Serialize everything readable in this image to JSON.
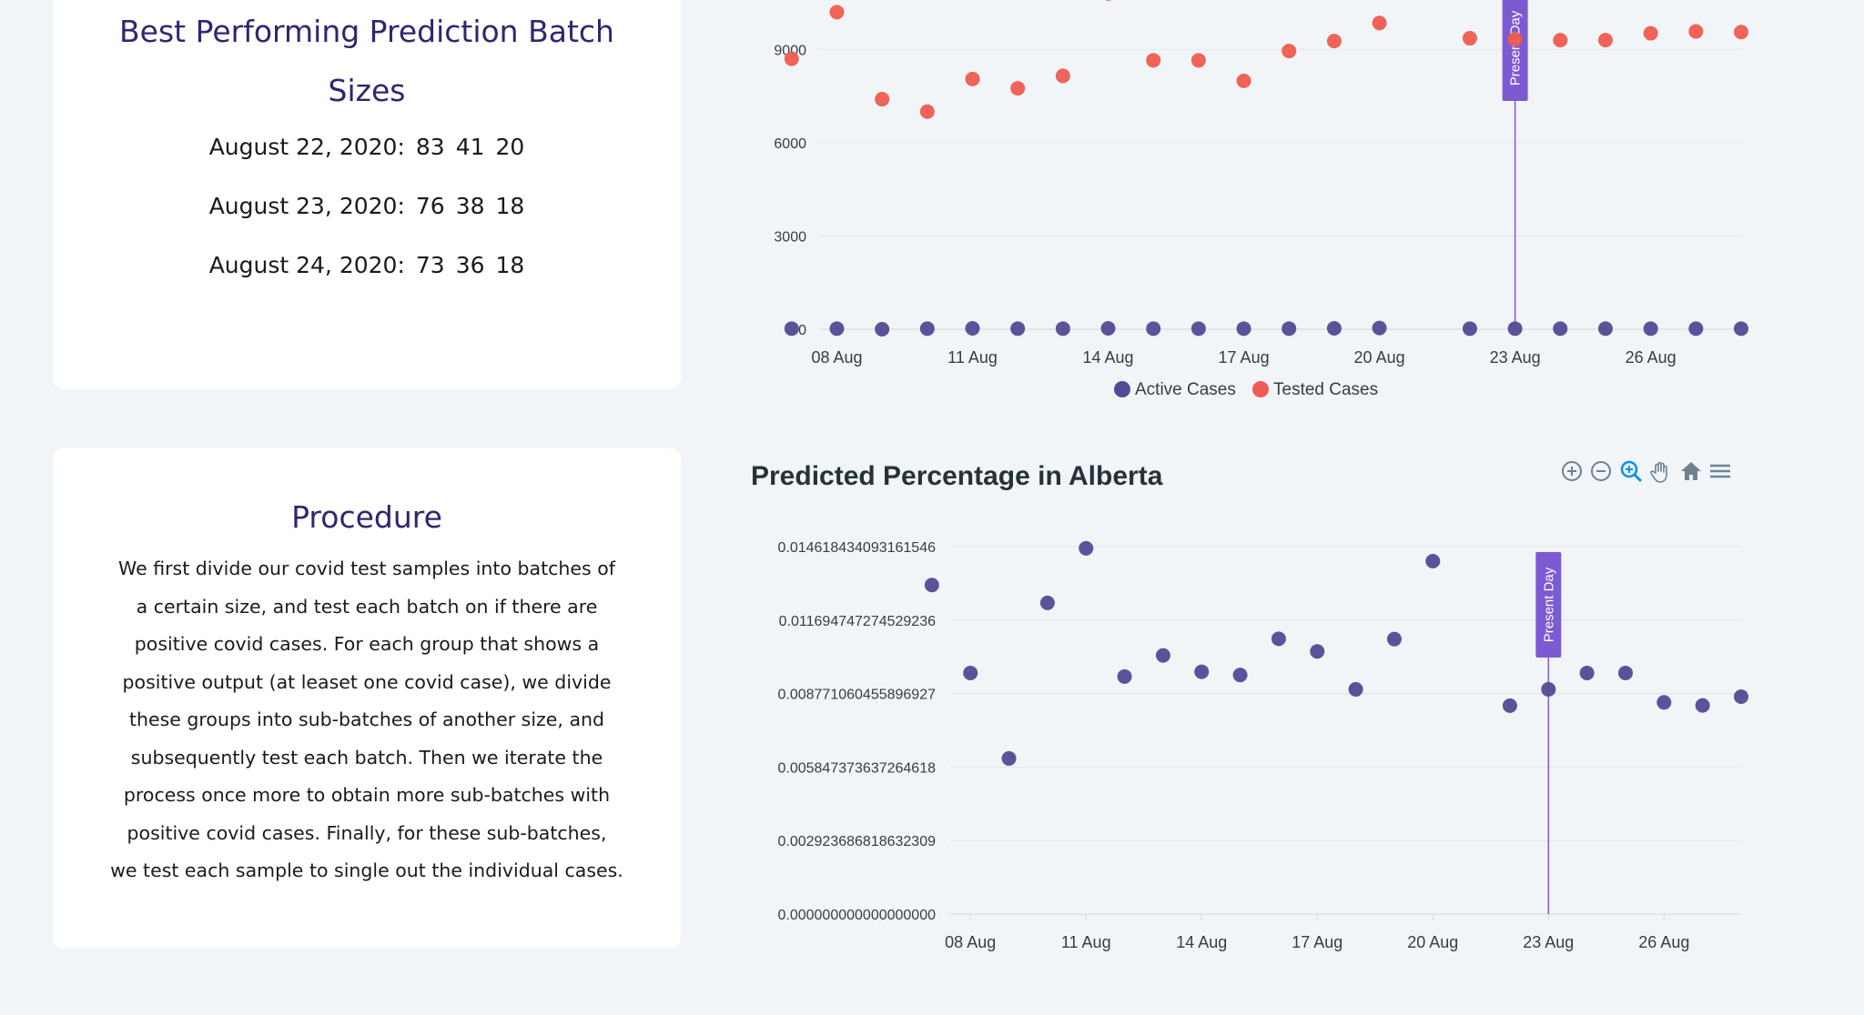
{
  "batch_card": {
    "title_line1": "Best Performing Prediction Batch",
    "title_line2": "Sizes",
    "rows": [
      {
        "date": "August 22, 2020:",
        "a": "83",
        "b": "41",
        "c": "20"
      },
      {
        "date": "August 23, 2020:",
        "a": "76",
        "b": "38",
        "c": "18"
      },
      {
        "date": "August 24, 2020:",
        "a": "73",
        "b": "36",
        "c": "18"
      }
    ]
  },
  "procedure_card": {
    "title": "Procedure",
    "lines": [
      "We first divide our covid test samples into batches of",
      "a certain size, and test each batch on if there are",
      "positive covid cases. For each group that shows a",
      "positive output (at leaset one covid case), we divide",
      "these groups into sub-batches of another size, and",
      "subsequently test each batch. Then we iterate the",
      "process once more to obtain more sub-batches with",
      "positive covid cases. Finally, for these sub-batches,",
      "we test each sample to single out the individual cases."
    ]
  },
  "colors": {
    "active": "#524a95",
    "tested": "#ef5b50",
    "annotation": "#7c5bd2",
    "grid": "#e3e3e3"
  },
  "chart_data": [
    {
      "type": "scatter",
      "title": "",
      "x": [
        "07 Aug",
        "08 Aug",
        "09 Aug",
        "10 Aug",
        "11 Aug",
        "12 Aug",
        "13 Aug",
        "14 Aug",
        "15 Aug",
        "16 Aug",
        "17 Aug",
        "18 Aug",
        "19 Aug",
        "20 Aug",
        "22 Aug",
        "23 Aug",
        "24 Aug",
        "25 Aug",
        "26 Aug",
        "27 Aug",
        "28 Aug"
      ],
      "x_day": [
        7,
        8,
        9,
        10,
        11,
        12,
        13,
        14,
        15,
        16,
        17,
        18,
        19,
        20,
        22,
        23,
        24,
        25,
        26,
        27,
        28
      ],
      "series": [
        {
          "name": "Active Cases",
          "values": [
            20,
            20,
            0,
            20,
            30,
            20,
            20,
            30,
            20,
            20,
            20,
            20,
            30,
            40,
            20,
            20,
            20,
            20,
            20,
            20,
            20
          ]
        },
        {
          "name": "Tested Cases",
          "values": [
            8700,
            10200,
            7400,
            7000,
            8050,
            7750,
            8150,
            10800,
            8650,
            8650,
            7990,
            8950,
            9270,
            9850,
            9360,
            9330,
            9300,
            9300,
            9520,
            9580,
            9560
          ]
        }
      ],
      "y_ticks": [
        "0",
        "3000",
        "6000",
        "9000"
      ],
      "ylim": [
        0,
        11000
      ],
      "xlim": [
        6.4,
        28.0
      ],
      "x_ticks": [
        "08 Aug",
        "11 Aug",
        "14 Aug",
        "17 Aug",
        "20 Aug",
        "23 Aug",
        "26 Aug"
      ],
      "x_tick_days": [
        8,
        11,
        14,
        17,
        20,
        23,
        26
      ],
      "annotation": {
        "label": "Present Day",
        "x_day": 23
      },
      "legend": [
        "Active Cases",
        "Tested Cases"
      ],
      "legend_position": "bottom"
    },
    {
      "type": "scatter",
      "title": "Predicted Percentage in Alberta",
      "x_day": [
        7,
        8,
        9,
        10,
        11,
        12,
        13,
        14,
        15,
        16,
        17,
        18,
        19,
        20,
        22,
        23,
        24,
        25,
        26,
        27,
        28
      ],
      "series": [
        {
          "name": "Predicted Percentage",
          "values": [
            0.01309,
            0.00959,
            0.00619,
            0.01238,
            0.01455,
            0.00945,
            0.01029,
            0.00964,
            0.00951,
            0.01095,
            0.01045,
            0.00894,
            0.01094,
            0.01404,
            0.00829,
            0.00894,
            0.00959,
            0.00959,
            0.00842,
            0.0083,
            0.00865
          ]
        }
      ],
      "y_ticks": [
        "0.000000000000000000",
        "0.002923686818632309",
        "0.005847373637264618",
        "0.008771060455896927",
        "0.011694747274529236",
        "0.014618434093161546"
      ],
      "ylim": [
        0,
        0.014618434093161546
      ],
      "xlim": [
        6.2,
        28.0
      ],
      "x_ticks": [
        "08 Aug",
        "11 Aug",
        "14 Aug",
        "17 Aug",
        "20 Aug",
        "23 Aug",
        "26 Aug"
      ],
      "x_tick_days": [
        8,
        11,
        14,
        17,
        20,
        23,
        26
      ],
      "annotation": {
        "label": "Present Day",
        "x_day": 23
      }
    }
  ],
  "toolbar": {
    "icons": [
      "zoom-in-icon",
      "zoom-out-icon",
      "zoom-select-icon",
      "pan-hand-icon",
      "reset-home-icon",
      "menu-icon"
    ]
  }
}
